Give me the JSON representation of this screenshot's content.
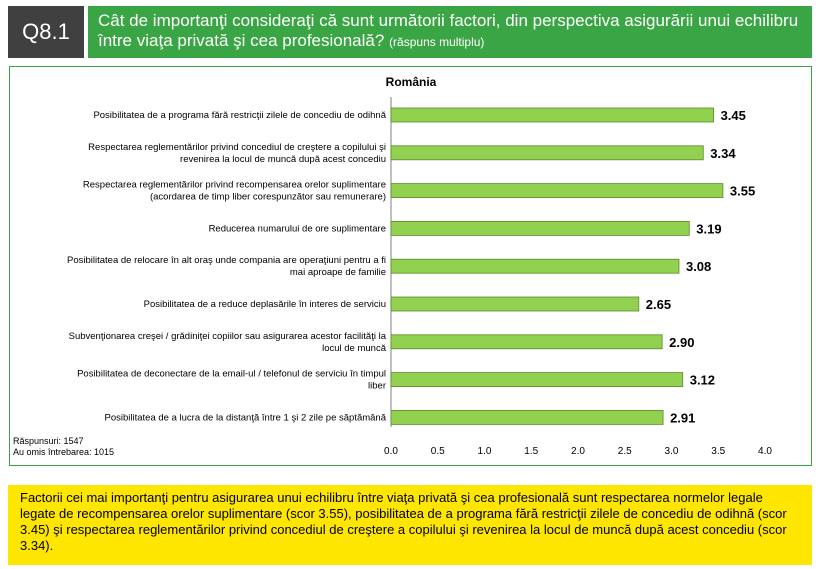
{
  "header": {
    "question_id": "Q8.1",
    "question_text": "Cât de importanţi consideraţi că sunt următorii factori, din perspectiva asigurării unui echilibru între viaţa privată şi cea profesională?",
    "question_note": "(răspuns multiplu)"
  },
  "colors": {
    "bar": "#92d050",
    "bar_border": "#5a8a2a",
    "accent_green": "#3aa544",
    "summary_bg": "#ffe600"
  },
  "chart_data": {
    "type": "bar",
    "orientation": "horizontal",
    "title": "România",
    "categories": [
      [
        "Posibilitatea de a programa fără restricţii zilele de concediu de odihnă"
      ],
      [
        "Respectarea reglementărilor privind concediul de creştere a copilului şi",
        "revenirea la locul de muncă după acest concediu"
      ],
      [
        "Respectarea reglementărilor privind recompensarea orelor suplimentare",
        "(acordarea de timp liber corespunzător sau remunerare)"
      ],
      [
        "Reducerea numarului de ore suplimentare"
      ],
      [
        "Posibilitatea de relocare în alt oraş unde compania are operaţiuni pentru a fi",
        "mai aproape de familie"
      ],
      [
        "Posibilitatea de a reduce deplasările în interes de serviciu"
      ],
      [
        "Subvenţionarea creşei / grădiniţei copiilor sau asigurarea acestor facilităţi la",
        "locul de muncă"
      ],
      [
        "Posibilitatea de deconectare de la email-ul / telefonul de serviciu în timpul",
        "liber"
      ],
      [
        "Posibilitatea de a lucra de la distanţă între 1 şi 2 zile pe săptămână"
      ]
    ],
    "values": [
      3.45,
      3.34,
      3.55,
      3.19,
      3.08,
      2.65,
      2.9,
      3.12,
      2.91
    ],
    "value_labels": [
      "3.45",
      "3.34",
      "3.55",
      "3.19",
      "3.08",
      "2.65",
      "2.90",
      "3.12",
      "2.91"
    ],
    "xlim": [
      0,
      4.0
    ],
    "xticks": [
      "0.0",
      "0.5",
      "1.0",
      "1.5",
      "2.0",
      "2.5",
      "3.0",
      "3.5",
      "4.0"
    ],
    "grid": false,
    "legend": "none"
  },
  "footnote": {
    "responses": "Răspunsuri: 1547",
    "omitted": "Au omis întrebarea: 1015"
  },
  "summary": {
    "text": "Factorii cei mai importanţi pentru asigurarea unui echilibru între viaţa privată şi cea profesională sunt respectarea normelor legale legate de recompensarea orelor suplimentare (scor 3.55), posibilitatea de a programa fără restricţii zilele de concediu de odihnă (scor 3.45) şi respectarea reglementărilor privind concediul de creştere a copilului şi revenirea la locul de muncă după acest concediu (scor 3.34)."
  }
}
